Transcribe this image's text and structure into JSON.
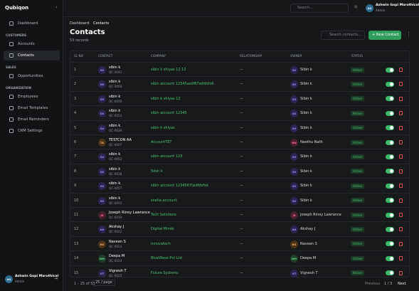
{
  "brand": "Qubiqon",
  "sidebar": {
    "items": [
      {
        "label": "Dashboard"
      }
    ],
    "sections": [
      {
        "title": "CUSTOMERS",
        "items": [
          "Accounts",
          "Contacts"
        ]
      },
      {
        "title": "SALES",
        "items": [
          "Opportunities"
        ]
      },
      {
        "title": "ORGANIZATION",
        "items": [
          "Employees",
          "Email Templates",
          "Email Reminders",
          "CRM Settings"
        ]
      }
    ],
    "user": {
      "initials": "AG",
      "name": "Ashwin Gopi Marothical",
      "role": "Admin"
    }
  },
  "topbar": {
    "search": "Search...",
    "user": {
      "initials": "AG",
      "name": "Ashwin Gopi Marothical",
      "role": "Admin"
    }
  },
  "breadcrumb": [
    "Dashboard",
    "Contacts"
  ],
  "header": {
    "title": "Contacts",
    "subtitle": "53 records",
    "search": "Search contacts...",
    "button": "New Contact"
  },
  "table": {
    "columns": [
      "SL NO",
      "CONTACT",
      "COMPANY",
      "RELATIONSHIP",
      "OWNER",
      "STATUS"
    ],
    "rows": [
      [
        "1",
        "SK",
        "sibin k",
        "QC-0041",
        "sibin k shiyas 12.12",
        "—",
        "SK",
        "Sibin k",
        "Active"
      ],
      [
        "2",
        "SK",
        "sibin k",
        "QC-0058",
        "sibin account 12345asdf67sdfdsfs6",
        "—",
        "SK",
        "Sibin k",
        "Active"
      ],
      [
        "3",
        "SK",
        "sibin k",
        "QC-0040",
        "sibin k shiyas 12",
        "—",
        "SK",
        "Sibin k",
        "Active"
      ],
      [
        "4",
        "SK",
        "sibin k",
        "QC-0053",
        "sibin account 12345",
        "—",
        "SK",
        "Sibin k",
        "Active"
      ],
      [
        "5",
        "SK",
        "sibin k",
        "QC-0039",
        "sibin k shiyas",
        "—",
        "SK",
        "Sibin k",
        "Active"
      ],
      [
        "6",
        "TA",
        "TESTCON AA",
        "QC-0007",
        "AccountTET",
        "—",
        "NN",
        "Neethu Nath",
        "Active"
      ],
      [
        "7",
        "SK",
        "sibin k",
        "QC-0052",
        "sibin account 123",
        "—",
        "SK",
        "Sibin k",
        "Active"
      ],
      [
        "8",
        "SK",
        "sibin k",
        "QC-0038",
        "Sibin k",
        "—",
        "SK",
        "Sibin k",
        "Active"
      ],
      [
        "9",
        "SK",
        "sibin k",
        "QC-0057",
        "sibin account 1234567ljsdfdsfsd",
        "—",
        "SK",
        "Sibin k",
        "Active"
      ],
      [
        "10",
        "SK",
        "sibin k",
        "QC-0055",
        "sneha account",
        "—",
        "SK",
        "Sibin k",
        "Active"
      ],
      [
        "11",
        "JR",
        "Joseph Rinoy Lawrance",
        "QC-0019",
        "Tech Solutions",
        "—",
        "JR",
        "Joseph Rinoy Lawrance",
        "Active"
      ],
      [
        "12",
        "AK",
        "Akshay J",
        "QC-0022",
        "Digital Minds",
        "—",
        "AK",
        "Akshay J",
        "Active"
      ],
      [
        "13",
        "NS",
        "Naveen S",
        "QC-0023",
        "Innovatech",
        "—",
        "NS",
        "Naveen S",
        "Active"
      ],
      [
        "14",
        "DM",
        "Deepa M",
        "QC-0024",
        "BlueWave Pvt Ltd",
        "—",
        "DM",
        "Deepa M",
        "Active"
      ],
      [
        "15",
        "VT",
        "Vignesh T",
        "QC-0025",
        "Future Systems",
        "—",
        "VT",
        "Vignesh T",
        "Active"
      ]
    ]
  },
  "footer": {
    "range": "1 – 25 of 53",
    "per_page": "25 / page",
    "previous": "Previous",
    "page": "1 / 3",
    "next": "Next"
  }
}
